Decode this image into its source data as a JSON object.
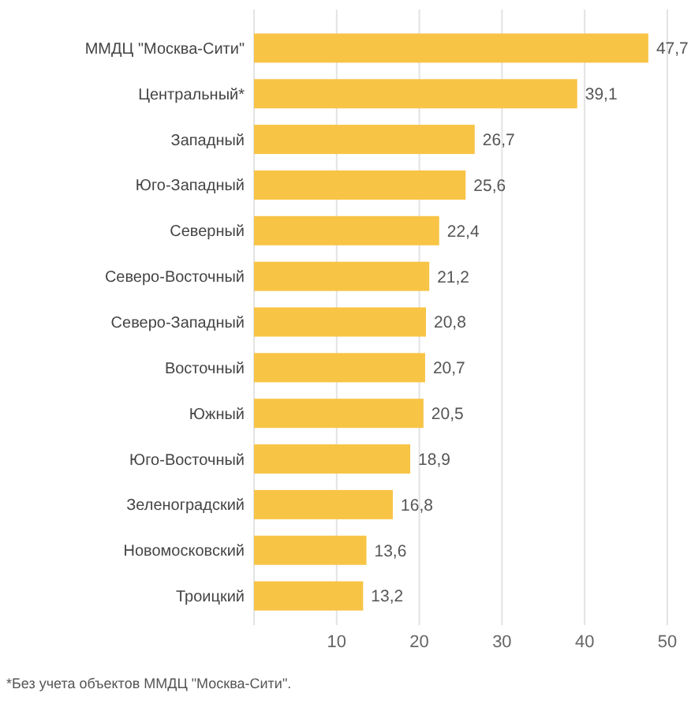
{
  "chart_data": {
    "type": "bar",
    "orientation": "horizontal",
    "categories": [
      "ММДЦ \"Москва-Сити\"",
      "Центральный*",
      "Западный",
      "Юго-Западный",
      "Северный",
      "Северо-Восточный",
      "Северо-Западный",
      "Восточный",
      "Южный",
      "Юго-Восточный",
      "Зеленоградский",
      "Новомосковский",
      "Троицкий"
    ],
    "values": [
      47.7,
      39.1,
      26.7,
      25.6,
      22.4,
      21.2,
      20.8,
      20.7,
      20.5,
      18.9,
      16.8,
      13.6,
      13.2
    ],
    "value_labels": [
      "47,7",
      "39,1",
      "26,7",
      "25,6",
      "22,4",
      "21,2",
      "20,8",
      "20,7",
      "20,5",
      "18,9",
      "16,8",
      "13,6",
      "13,2"
    ],
    "color": "#f8c445",
    "xlim": [
      0,
      50
    ],
    "xticks": [
      {
        "value": 0,
        "label": null
      },
      10,
      20,
      30,
      40,
      50
    ],
    "grid": "x",
    "annotations": [
      "*Без учета объектов ММДЦ \"Москва-Сити\"."
    ]
  }
}
